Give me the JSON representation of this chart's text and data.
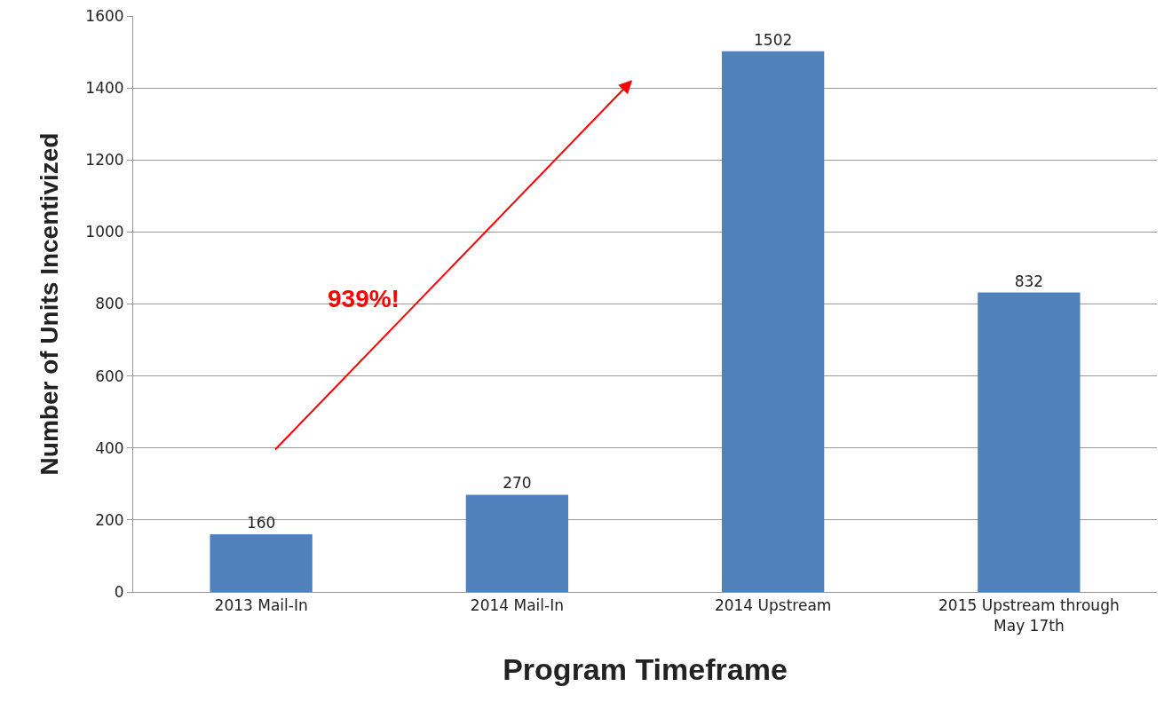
{
  "chart_data": {
    "type": "bar",
    "xlabel": "Program Timeframe",
    "ylabel": "Number of Units Incentivized",
    "categories": [
      "2013 Mail-In",
      "2014 Mail-In",
      "2014 Upstream",
      "2015 Upstream through May 17th"
    ],
    "values": [
      160,
      270,
      1502,
      832
    ],
    "color": "#4f81bd",
    "data_labels": true,
    "ylim": [
      0,
      1600
    ],
    "yticks": [
      0,
      200,
      400,
      600,
      800,
      1000,
      1200,
      1400,
      1600
    ],
    "grid": "y",
    "annotations": [
      "939%!"
    ]
  }
}
